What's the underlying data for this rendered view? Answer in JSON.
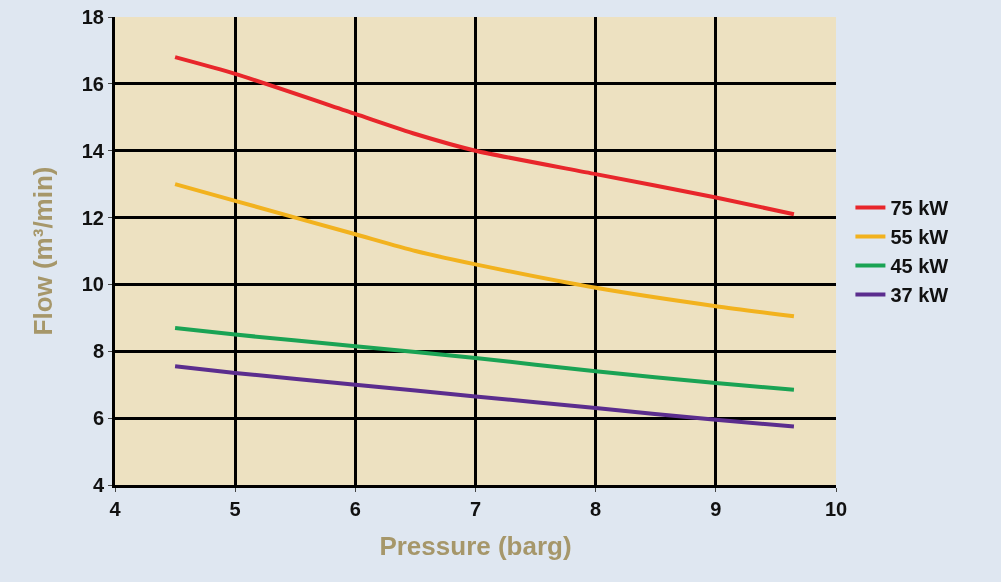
{
  "chart_data": {
    "type": "line",
    "xlabel": "Pressure (barg)",
    "ylabel": "Flow (m³/min)",
    "xlim": [
      4,
      10
    ],
    "xticks": [
      4,
      5,
      6,
      7,
      8,
      9,
      10
    ],
    "ylim": [
      4,
      18
    ],
    "yticks": [
      4,
      6,
      8,
      10,
      12,
      14,
      16,
      18
    ],
    "grid": true,
    "legend": "right",
    "marker": "none",
    "line_style": "solid",
    "series": [
      {
        "name": "75 kW",
        "color": "#e8262b",
        "x": [
          4.5,
          5,
          6,
          6.5,
          7,
          8,
          9,
          9.65
        ],
        "values": [
          16.8,
          16.3,
          15.1,
          14.5,
          14.0,
          13.3,
          12.6,
          12.1
        ]
      },
      {
        "name": "55 kW",
        "color": "#f2b21e",
        "x": [
          4.5,
          5,
          6,
          6.5,
          7,
          8,
          9,
          9.65
        ],
        "values": [
          13.0,
          12.5,
          11.5,
          11.0,
          10.6,
          9.9,
          9.35,
          9.05
        ]
      },
      {
        "name": "45 kW",
        "color": "#1aa354",
        "x": [
          4.5,
          5,
          6,
          7,
          8,
          9,
          9.65
        ],
        "values": [
          8.7,
          8.5,
          8.15,
          7.8,
          7.4,
          7.05,
          6.85
        ]
      },
      {
        "name": "37 kW",
        "color": "#5b2d8e",
        "x": [
          4.5,
          5,
          6,
          7,
          8,
          9,
          9.65
        ],
        "values": [
          7.55,
          7.35,
          7.0,
          6.65,
          6.3,
          5.95,
          5.75
        ]
      }
    ]
  }
}
